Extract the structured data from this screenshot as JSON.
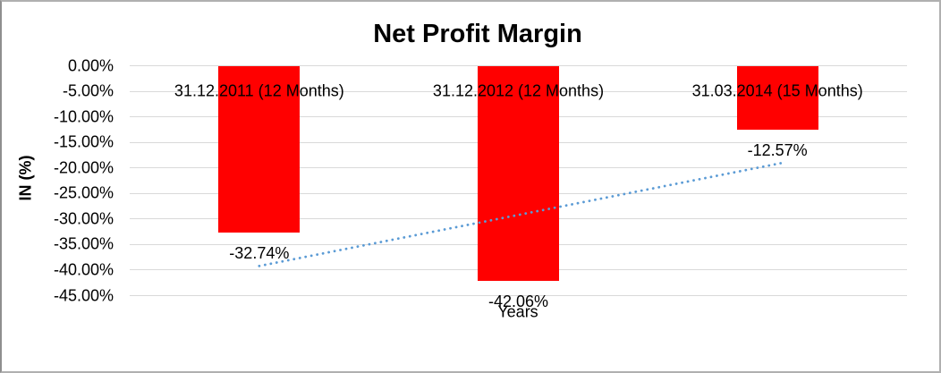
{
  "chart_data": {
    "type": "bar",
    "title": "Net Profit Margin",
    "xlabel": "Years",
    "ylabel": "IN (%)",
    "categories": [
      "31.12.2011 (12 Months)",
      "31.12.2012 (12 Months)",
      "31.03.2014 (15 Months)"
    ],
    "values": [
      -32.74,
      -42.06,
      -12.57
    ],
    "data_labels": [
      "-32.74%",
      "-42.06%",
      "-12.57%"
    ],
    "y_tick_labels": [
      "0.00%",
      "-5.00%",
      "-10.00%",
      "-15.00%",
      "-20.00%",
      "-25.00%",
      "-30.00%",
      "-35.00%",
      "-40.00%",
      "-45.00%"
    ],
    "y_tick_values": [
      0,
      -5,
      -10,
      -15,
      -20,
      -25,
      -30,
      -35,
      -40,
      -45
    ],
    "ylim": [
      -45,
      0
    ],
    "grid": true,
    "legend": "none",
    "bar_color": "#ff0000",
    "gridline_color": "#d9d9d9",
    "trendline": {
      "type": "linear",
      "style": "dotted",
      "color": "#5b9bd5",
      "start_value": -39.2,
      "end_value": -19.0
    }
  }
}
